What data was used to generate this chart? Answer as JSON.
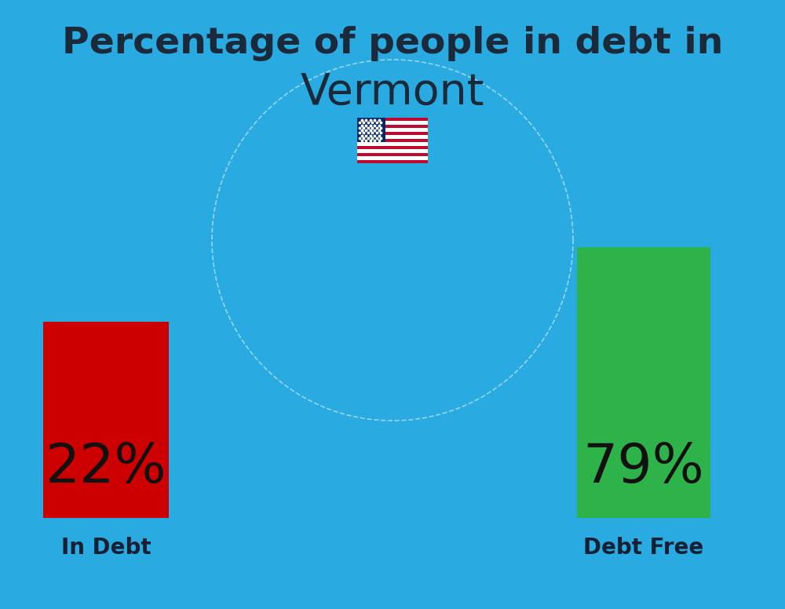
{
  "title_line1": "Percentage of people in debt in",
  "title_line2": "Vermont",
  "background_color": "#29ABE2",
  "bar1_label": "22%",
  "bar1_color": "#CC0000",
  "bar1_text": "In Debt",
  "bar2_label": "79%",
  "bar2_color": "#2DB34A",
  "bar2_text": "Debt Free",
  "title_color": "#1a2a3a",
  "label_color": "#162035",
  "pct_color": "#111111",
  "title_fontsize": 34,
  "subtitle_fontsize": 40,
  "pct_fontsize": 50,
  "label_fontsize": 20
}
